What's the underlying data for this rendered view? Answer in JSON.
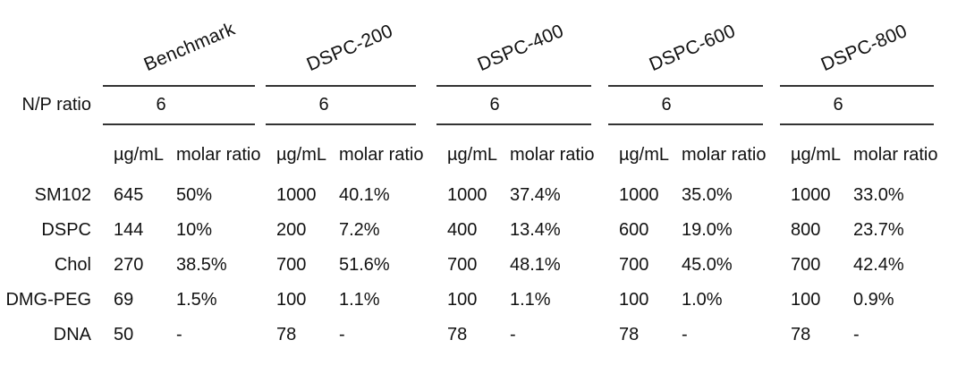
{
  "page": {
    "background": "#ffffff",
    "text_color": "#111111",
    "rule_color": "#333333"
  },
  "table": {
    "np_label": "N/P ratio",
    "units": {
      "ug": "µg/mL",
      "molar": "molar ratio"
    },
    "row_labels": [
      "SM102",
      "DSPC",
      "Chol",
      "DMG-PEG",
      "DNA"
    ],
    "groups": [
      {
        "name": "Benchmark",
        "np": "6",
        "rows": [
          {
            "ug": "645",
            "molar": "50%"
          },
          {
            "ug": "144",
            "molar": "10%"
          },
          {
            "ug": "270",
            "molar": "38.5%"
          },
          {
            "ug": "69",
            "molar": "1.5%"
          },
          {
            "ug": "50",
            "molar": "-"
          }
        ]
      },
      {
        "name": "DSPC-200",
        "np": "6",
        "rows": [
          {
            "ug": "1000",
            "molar": "40.1%"
          },
          {
            "ug": "200",
            "molar": "7.2%"
          },
          {
            "ug": "700",
            "molar": "51.6%"
          },
          {
            "ug": "100",
            "molar": "1.1%"
          },
          {
            "ug": "78",
            "molar": "-"
          }
        ]
      },
      {
        "name": "DSPC-400",
        "np": "6",
        "rows": [
          {
            "ug": "1000",
            "molar": "37.4%"
          },
          {
            "ug": "400",
            "molar": "13.4%"
          },
          {
            "ug": "700",
            "molar": "48.1%"
          },
          {
            "ug": "100",
            "molar": "1.1%"
          },
          {
            "ug": "78",
            "molar": "-"
          }
        ]
      },
      {
        "name": "DSPC-600",
        "np": "6",
        "rows": [
          {
            "ug": "1000",
            "molar": "35.0%"
          },
          {
            "ug": "600",
            "molar": "19.0%"
          },
          {
            "ug": "700",
            "molar": "45.0%"
          },
          {
            "ug": "100",
            "molar": "1.0%"
          },
          {
            "ug": "78",
            "molar": "-"
          }
        ]
      },
      {
        "name": "DSPC-800",
        "np": "6",
        "rows": [
          {
            "ug": "1000",
            "molar": "33.0%"
          },
          {
            "ug": "800",
            "molar": "23.7%"
          },
          {
            "ug": "700",
            "molar": "42.4%"
          },
          {
            "ug": "100",
            "molar": "0.9%"
          },
          {
            "ug": "78",
            "molar": "-"
          }
        ]
      }
    ]
  }
}
